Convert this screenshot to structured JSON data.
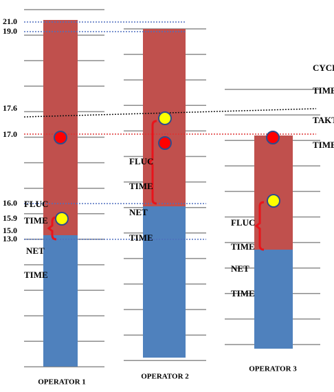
{
  "y_labels": [
    "21.0",
    "19.0",
    "17.6",
    "17.0",
    "16.0",
    "15.9",
    "15.0",
    "13.0"
  ],
  "right_labels": [
    "CYCLE",
    "TIME",
    "TAKT",
    "TIME"
  ],
  "operators": [
    {
      "label": "OPERATOR 1",
      "annotations": [
        "FLUC",
        "TIME",
        "NET",
        "TIME"
      ]
    },
    {
      "label": "OPERATOR 2",
      "annotations": [
        "FLUC",
        "TIME",
        "NET",
        "TIME"
      ]
    },
    {
      "label": "OPERATOR 3",
      "annotations": [
        "FLUC",
        "TIME",
        "NET",
        "TIME"
      ]
    }
  ]
}
